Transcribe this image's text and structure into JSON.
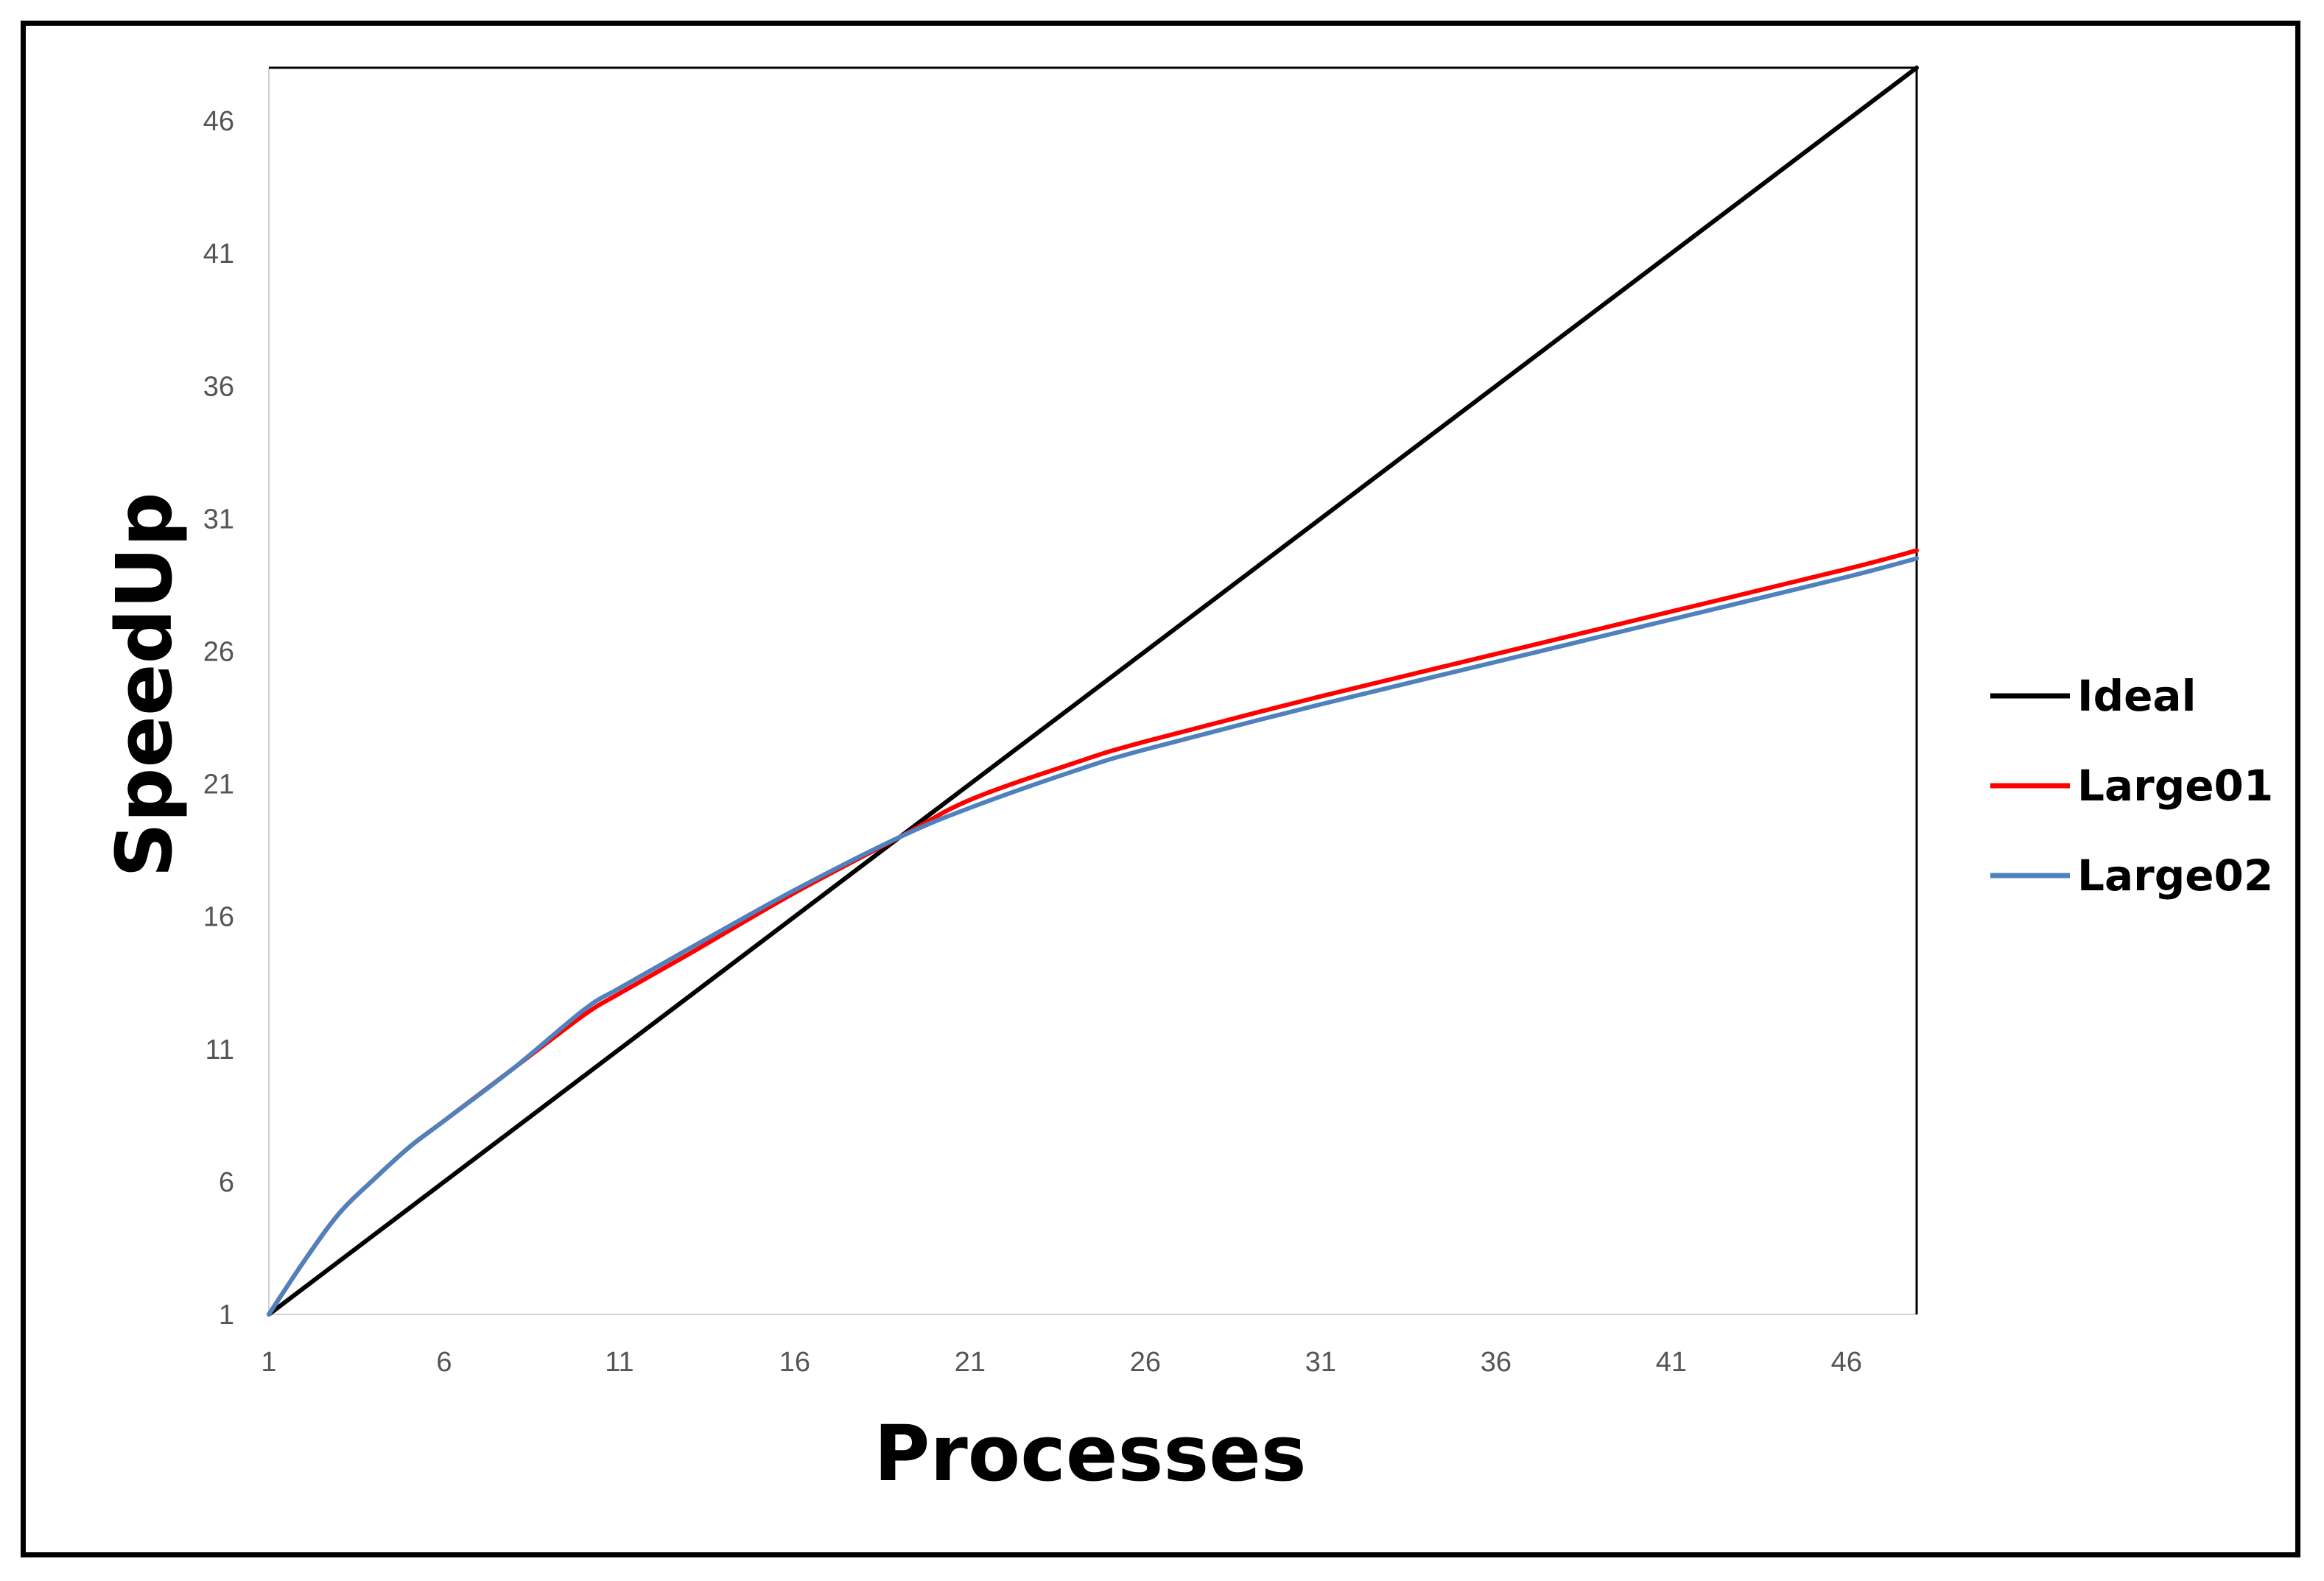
{
  "chart_data": {
    "type": "line",
    "title": "",
    "xlabel": "Processes",
    "ylabel": "SpeedUp",
    "xlim": [
      1,
      48
    ],
    "ylim": [
      1,
      48
    ],
    "xticks": [
      "1",
      "6",
      "11",
      "16",
      "21",
      "26",
      "31",
      "36",
      "41",
      "46"
    ],
    "yticks": [
      "1",
      "6",
      "11",
      "16",
      "21",
      "26",
      "31",
      "36",
      "41",
      "46"
    ],
    "grid": false,
    "legend_position": "right",
    "series": [
      {
        "name": "Ideal",
        "color": "#000000",
        "x": [
          1,
          48
        ],
        "y": [
          1,
          48
        ]
      },
      {
        "name": "Large01",
        "color": "#ff0000",
        "x": [
          1,
          2,
          3,
          4,
          5,
          6,
          8,
          10,
          11,
          13,
          16,
          19,
          21,
          24,
          26,
          31,
          36,
          41,
          46,
          48
        ],
        "y": [
          1,
          3.0,
          4.8,
          6.1,
          7.3,
          8.3,
          10.3,
          12.3,
          13.1,
          14.6,
          16.9,
          19.0,
          20.4,
          21.8,
          22.6,
          24.3,
          25.9,
          27.5,
          29.1,
          29.8
        ]
      },
      {
        "name": "Large02",
        "color": "#4f81bd",
        "x": [
          1,
          2,
          3,
          4,
          5,
          6,
          8,
          10,
          11,
          13,
          16,
          19,
          21,
          24,
          26,
          31,
          36,
          41,
          46,
          48
        ],
        "y": [
          1,
          3.0,
          4.8,
          6.1,
          7.3,
          8.3,
          10.3,
          12.5,
          13.3,
          14.8,
          17.0,
          19.0,
          20.1,
          21.5,
          22.3,
          24.0,
          25.6,
          27.2,
          28.8,
          29.5
        ]
      }
    ]
  }
}
